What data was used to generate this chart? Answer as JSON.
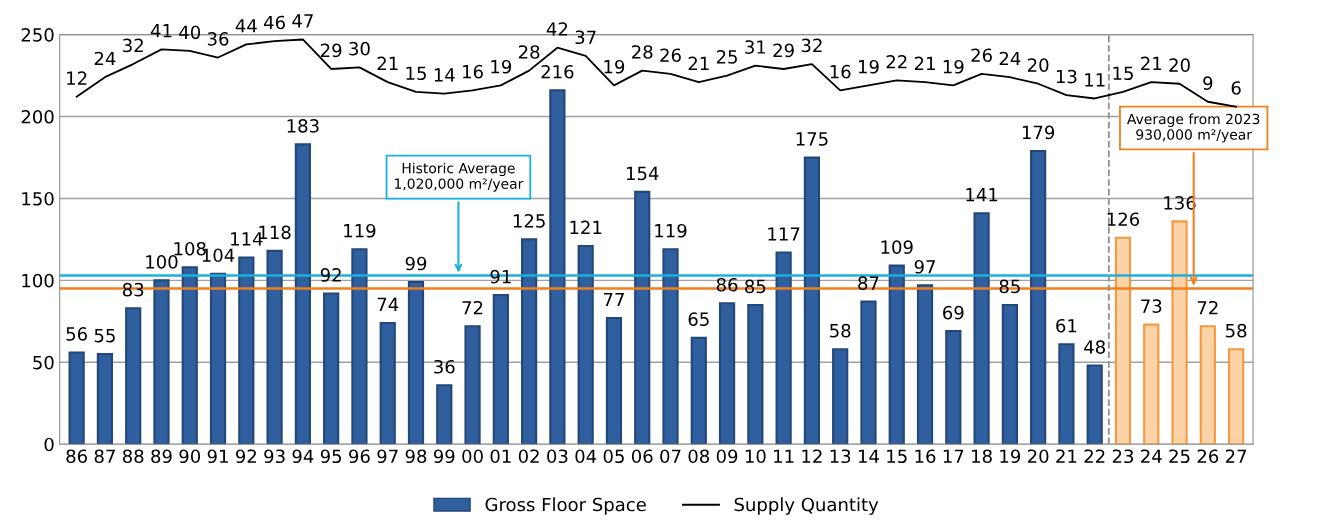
{
  "chart_data": {
    "type": "bar",
    "categories": [
      "86",
      "87",
      "88",
      "89",
      "90",
      "91",
      "92",
      "93",
      "94",
      "95",
      "96",
      "97",
      "98",
      "99",
      "00",
      "01",
      "02",
      "03",
      "04",
      "05",
      "06",
      "07",
      "08",
      "09",
      "10",
      "11",
      "12",
      "13",
      "14",
      "15",
      "16",
      "17",
      "18",
      "19",
      "20",
      "21",
      "22",
      "23",
      "24",
      "25",
      "26",
      "27"
    ],
    "series": [
      {
        "name": "Gross Floor Space",
        "color": "#2f5f9f",
        "colors": [
          "#2f5f9f",
          "#2f5f9f",
          "#2f5f9f",
          "#2f5f9f",
          "#2f5f9f",
          "#2f5f9f",
          "#2f5f9f",
          "#2f5f9f",
          "#2f5f9f",
          "#2f5f9f",
          "#2f5f9f",
          "#2f5f9f",
          "#2f5f9f",
          "#2f5f9f",
          "#2f5f9f",
          "#2f5f9f",
          "#2f5f9f",
          "#2f5f9f",
          "#2f5f9f",
          "#2f5f9f",
          "#2f5f9f",
          "#2f5f9f",
          "#2f5f9f",
          "#2f5f9f",
          "#2f5f9f",
          "#2f5f9f",
          "#2f5f9f",
          "#2f5f9f",
          "#2f5f9f",
          "#2f5f9f",
          "#2f5f9f",
          "#2f5f9f",
          "#2f5f9f",
          "#2f5f9f",
          "#2f5f9f",
          "#2f5f9f",
          "#2f5f9f",
          "#fbd3a6",
          "#fbd3a6",
          "#fbd3a6",
          "#fbd3a6",
          "#fbd3a6"
        ],
        "values": [
          56,
          55,
          83,
          100,
          108,
          104,
          114,
          118,
          183,
          92,
          119,
          74,
          99,
          36,
          72,
          91,
          125,
          216,
          121,
          77,
          154,
          119,
          65,
          86,
          85,
          117,
          175,
          58,
          87,
          109,
          97,
          69,
          141,
          85,
          179,
          61,
          48,
          126,
          73,
          136,
          72,
          58
        ]
      },
      {
        "name": "Supply Quantity",
        "type": "line",
        "axis": "y2",
        "color": "#000000",
        "values": [
          12,
          24,
          32,
          41,
          40,
          36,
          44,
          46,
          47,
          29,
          30,
          21,
          15,
          14,
          16,
          19,
          28,
          42,
          37,
          19,
          28,
          26,
          21,
          25,
          31,
          29,
          32,
          16,
          19,
          22,
          21,
          19,
          26,
          24,
          20,
          13,
          11,
          15,
          21,
          20,
          9,
          6
        ]
      }
    ],
    "ylim": [
      0,
      250
    ],
    "yticks": [
      0,
      50,
      100,
      150,
      200,
      250
    ],
    "y2lim": [
      -200,
      50
    ],
    "data_labels": true,
    "grid": "y",
    "legend": "bottom",
    "ref_lines": [
      {
        "axis": "y",
        "value": 103,
        "label": "Historic Average\n1,020,000 m²/year",
        "color": "#1ab0e0"
      },
      {
        "axis": "y",
        "value": 95,
        "label": "Average from 2023\n930,000 m²/year",
        "color": "#f07f1e"
      },
      {
        "axis": "x",
        "value": "23",
        "color": "#909090",
        "line_style": "dashed"
      }
    ]
  }
}
